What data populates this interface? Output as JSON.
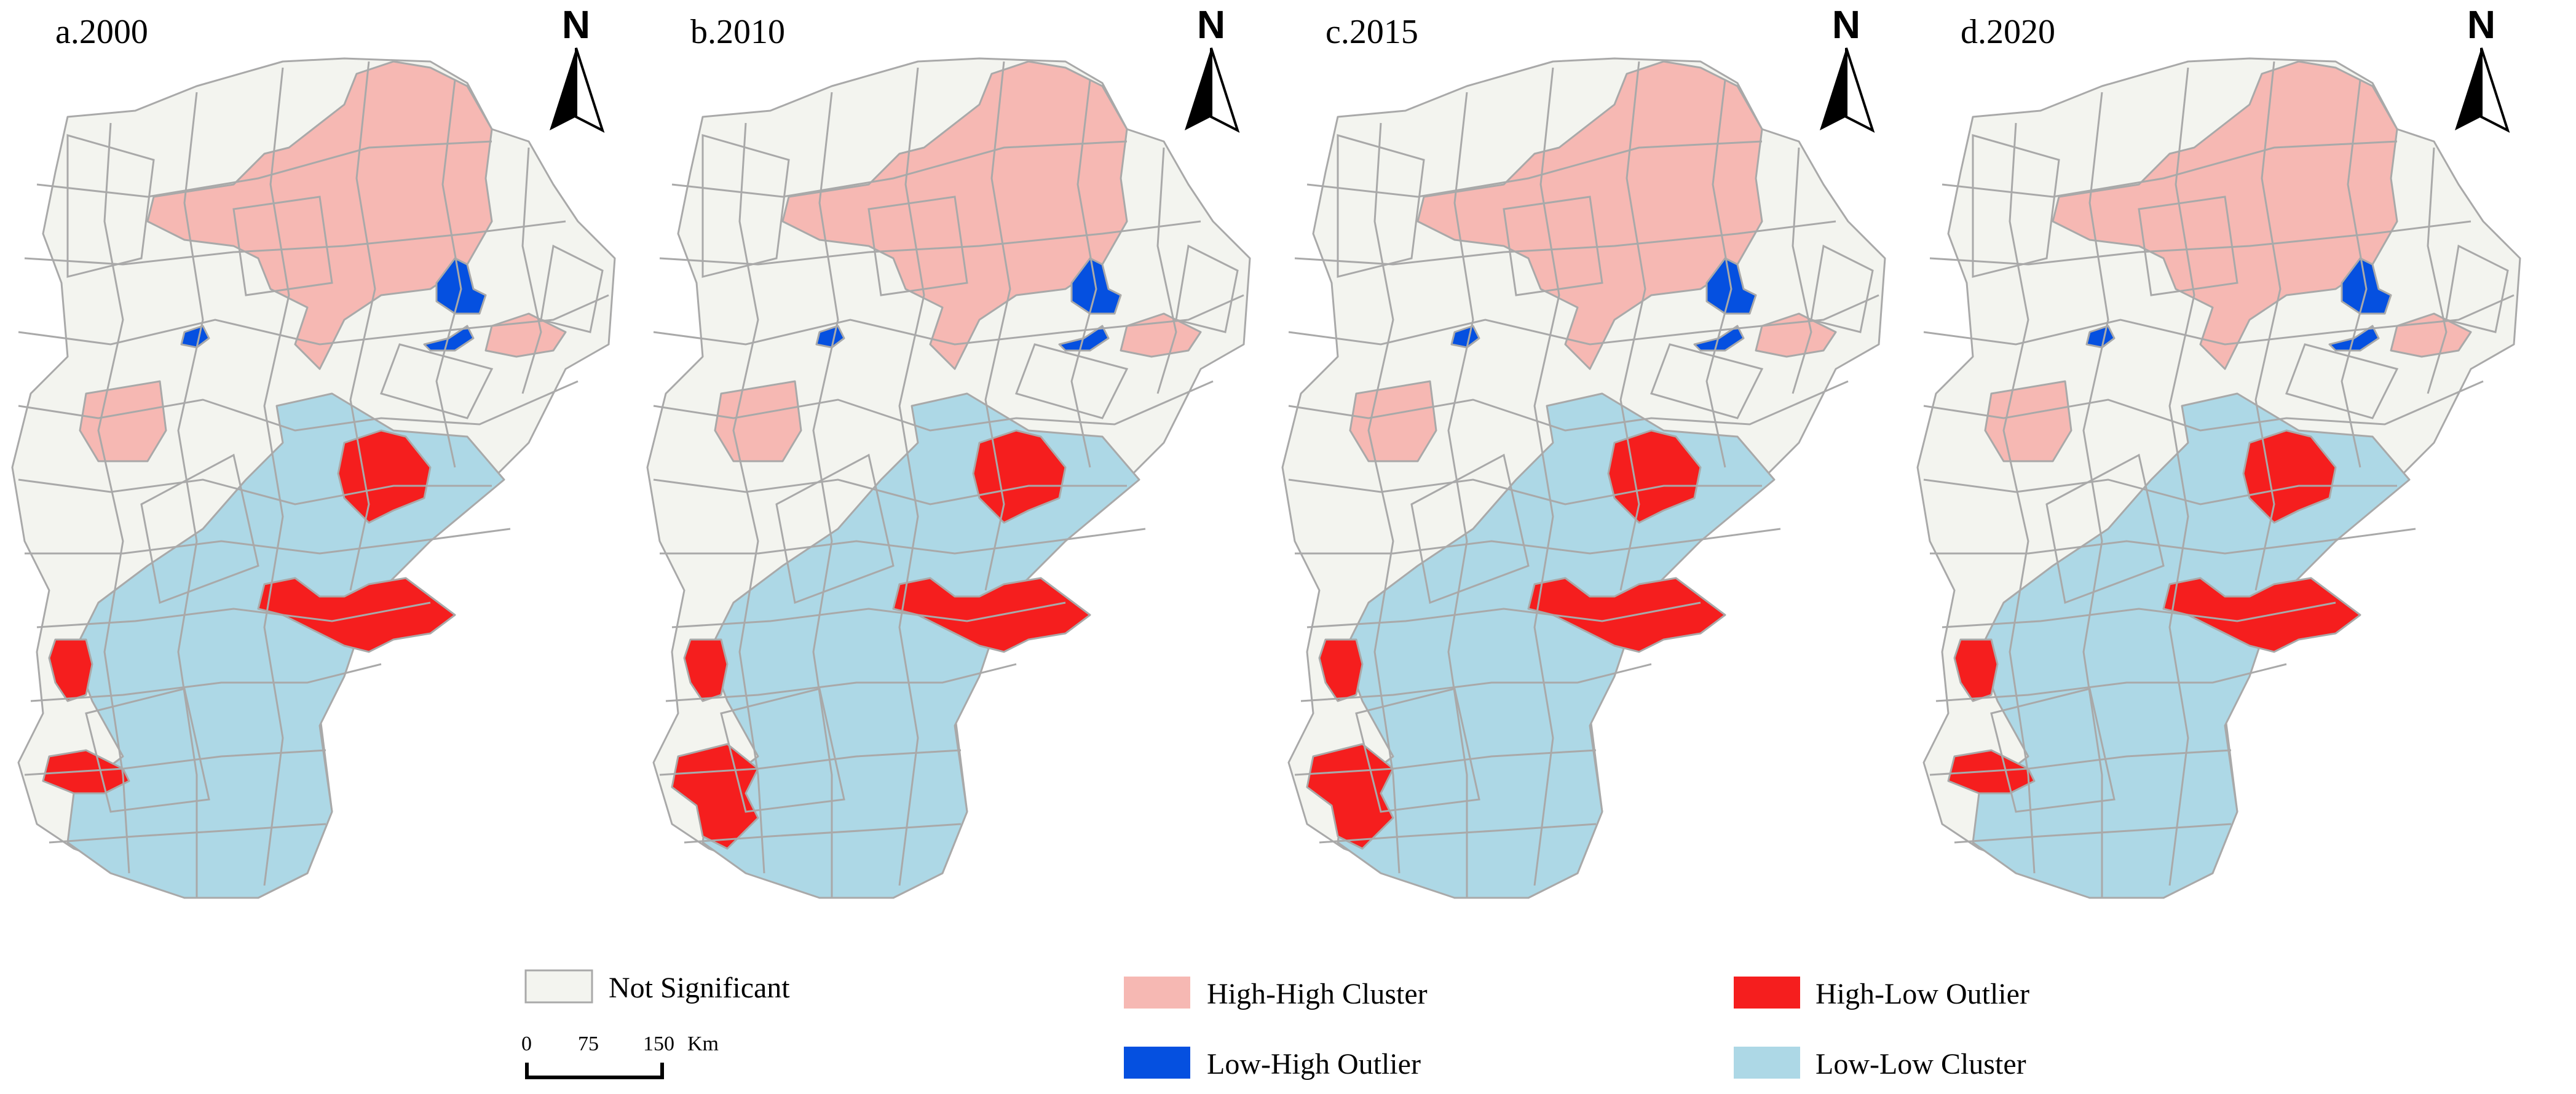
{
  "panels": [
    {
      "label": "a.2000"
    },
    {
      "label": "b.2010"
    },
    {
      "label": "c.2015"
    },
    {
      "label": "d.2020"
    }
  ],
  "north_arrow": {
    "letter": "N"
  },
  "legend": {
    "items": [
      {
        "key": "not_significant",
        "label": "Not Significant",
        "color": "#f3f4ef"
      },
      {
        "key": "high_high",
        "label": "High-High Cluster",
        "color": "#f6b8b3"
      },
      {
        "key": "high_low",
        "label": "High-Low Outlier",
        "color": "#f51e1e"
      },
      {
        "key": "low_high",
        "label": "Low-High Outlier",
        "color": "#0550e0"
      },
      {
        "key": "low_low",
        "label": "Low-Low Cluster",
        "color": "#add8e6"
      }
    ]
  },
  "scale_bar": {
    "ticks": [
      "0",
      "75",
      "150"
    ],
    "unit": "Km"
  },
  "colors": {
    "boundary": "#a9a9a9",
    "background": "#ffffff"
  }
}
